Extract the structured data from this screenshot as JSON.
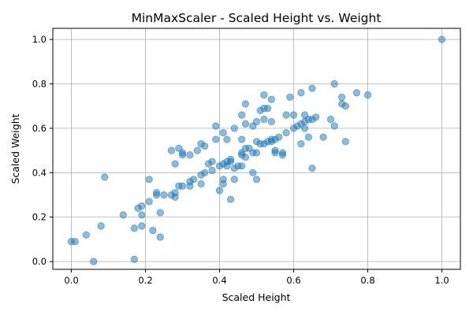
{
  "chart_data": {
    "type": "scatter",
    "title": "MinMaxScaler - Scaled Height vs. Weight",
    "xlabel": "Scaled Height",
    "ylabel": "Scaled Weight",
    "xlim": [
      -0.05,
      1.05
    ],
    "ylim": [
      -0.035,
      1.05
    ],
    "xticks": [
      0.0,
      0.2,
      0.4,
      0.6,
      0.8,
      1.0
    ],
    "yticks": [
      0.0,
      0.2,
      0.4,
      0.6,
      0.8,
      1.0
    ],
    "xtick_labels": [
      "0.0",
      "0.2",
      "0.4",
      "0.6",
      "0.8",
      "1.0"
    ],
    "ytick_labels": [
      "0.0",
      "0.2",
      "0.4",
      "0.6",
      "0.8",
      "1.0"
    ],
    "grid": true,
    "color": "#1f77b4",
    "alpha": 0.5,
    "points": [
      [
        0.0,
        0.09
      ],
      [
        0.01,
        0.09
      ],
      [
        0.04,
        0.12
      ],
      [
        0.06,
        0.0
      ],
      [
        0.08,
        0.16
      ],
      [
        0.09,
        0.38
      ],
      [
        0.14,
        0.21
      ],
      [
        0.17,
        0.01
      ],
      [
        0.17,
        0.15
      ],
      [
        0.18,
        0.24
      ],
      [
        0.19,
        0.16
      ],
      [
        0.19,
        0.21
      ],
      [
        0.19,
        0.25
      ],
      [
        0.21,
        0.27
      ],
      [
        0.21,
        0.37
      ],
      [
        0.22,
        0.14
      ],
      [
        0.23,
        0.3
      ],
      [
        0.23,
        0.31
      ],
      [
        0.24,
        0.11
      ],
      [
        0.24,
        0.22
      ],
      [
        0.25,
        0.3
      ],
      [
        0.27,
        0.3
      ],
      [
        0.27,
        0.5
      ],
      [
        0.28,
        0.44
      ],
      [
        0.28,
        0.29
      ],
      [
        0.28,
        0.31
      ],
      [
        0.29,
        0.34
      ],
      [
        0.29,
        0.51
      ],
      [
        0.3,
        0.48
      ],
      [
        0.3,
        0.49
      ],
      [
        0.3,
        0.34
      ],
      [
        0.32,
        0.34
      ],
      [
        0.32,
        0.36
      ],
      [
        0.32,
        0.48
      ],
      [
        0.33,
        0.37
      ],
      [
        0.34,
        0.5
      ],
      [
        0.35,
        0.53
      ],
      [
        0.35,
        0.35
      ],
      [
        0.35,
        0.39
      ],
      [
        0.36,
        0.4
      ],
      [
        0.36,
        0.52
      ],
      [
        0.37,
        0.44
      ],
      [
        0.38,
        0.41
      ],
      [
        0.38,
        0.45
      ],
      [
        0.39,
        0.55
      ],
      [
        0.39,
        0.61
      ],
      [
        0.4,
        0.43
      ],
      [
        0.4,
        0.32
      ],
      [
        0.41,
        0.35
      ],
      [
        0.41,
        0.37
      ],
      [
        0.41,
        0.44
      ],
      [
        0.41,
        0.58
      ],
      [
        0.42,
        0.55
      ],
      [
        0.42,
        0.43
      ],
      [
        0.42,
        0.45
      ],
      [
        0.43,
        0.28
      ],
      [
        0.43,
        0.45
      ],
      [
        0.43,
        0.46
      ],
      [
        0.44,
        0.42
      ],
      [
        0.44,
        0.37
      ],
      [
        0.44,
        0.6
      ],
      [
        0.45,
        0.43
      ],
      [
        0.46,
        0.48
      ],
      [
        0.46,
        0.49
      ],
      [
        0.46,
        0.55
      ],
      [
        0.46,
        0.66
      ],
      [
        0.46,
        0.43
      ],
      [
        0.47,
        0.47
      ],
      [
        0.47,
        0.51
      ],
      [
        0.47,
        0.62
      ],
      [
        0.47,
        0.71
      ],
      [
        0.48,
        0.51
      ],
      [
        0.49,
        0.4
      ],
      [
        0.49,
        0.61
      ],
      [
        0.49,
        0.49
      ],
      [
        0.5,
        0.37
      ],
      [
        0.5,
        0.49
      ],
      [
        0.5,
        0.54
      ],
      [
        0.5,
        0.63
      ],
      [
        0.51,
        0.53
      ],
      [
        0.51,
        0.68
      ],
      [
        0.52,
        0.53
      ],
      [
        0.52,
        0.64
      ],
      [
        0.52,
        0.69
      ],
      [
        0.52,
        0.75
      ],
      [
        0.53,
        0.69
      ],
      [
        0.53,
        0.54
      ],
      [
        0.54,
        0.54
      ],
      [
        0.54,
        0.55
      ],
      [
        0.54,
        0.63
      ],
      [
        0.54,
        0.73
      ],
      [
        0.55,
        0.49
      ],
      [
        0.55,
        0.5
      ],
      [
        0.55,
        0.55
      ],
      [
        0.56,
        0.56
      ],
      [
        0.57,
        0.49
      ],
      [
        0.57,
        0.48
      ],
      [
        0.58,
        0.58
      ],
      [
        0.58,
        0.66
      ],
      [
        0.59,
        0.74
      ],
      [
        0.6,
        0.6
      ],
      [
        0.6,
        0.66
      ],
      [
        0.61,
        0.61
      ],
      [
        0.62,
        0.76
      ],
      [
        0.62,
        0.53
      ],
      [
        0.62,
        0.62
      ],
      [
        0.63,
        0.63
      ],
      [
        0.63,
        0.66
      ],
      [
        0.63,
        0.6
      ],
      [
        0.64,
        0.64
      ],
      [
        0.64,
        0.56
      ],
      [
        0.65,
        0.64
      ],
      [
        0.65,
        0.78
      ],
      [
        0.65,
        0.42
      ],
      [
        0.66,
        0.65
      ],
      [
        0.68,
        0.56
      ],
      [
        0.7,
        0.64
      ],
      [
        0.71,
        0.61
      ],
      [
        0.71,
        0.8
      ],
      [
        0.73,
        0.71
      ],
      [
        0.73,
        0.74
      ],
      [
        0.74,
        0.7
      ],
      [
        0.74,
        0.54
      ],
      [
        0.77,
        0.76
      ],
      [
        0.8,
        0.75
      ],
      [
        1.0,
        1.0
      ]
    ]
  }
}
